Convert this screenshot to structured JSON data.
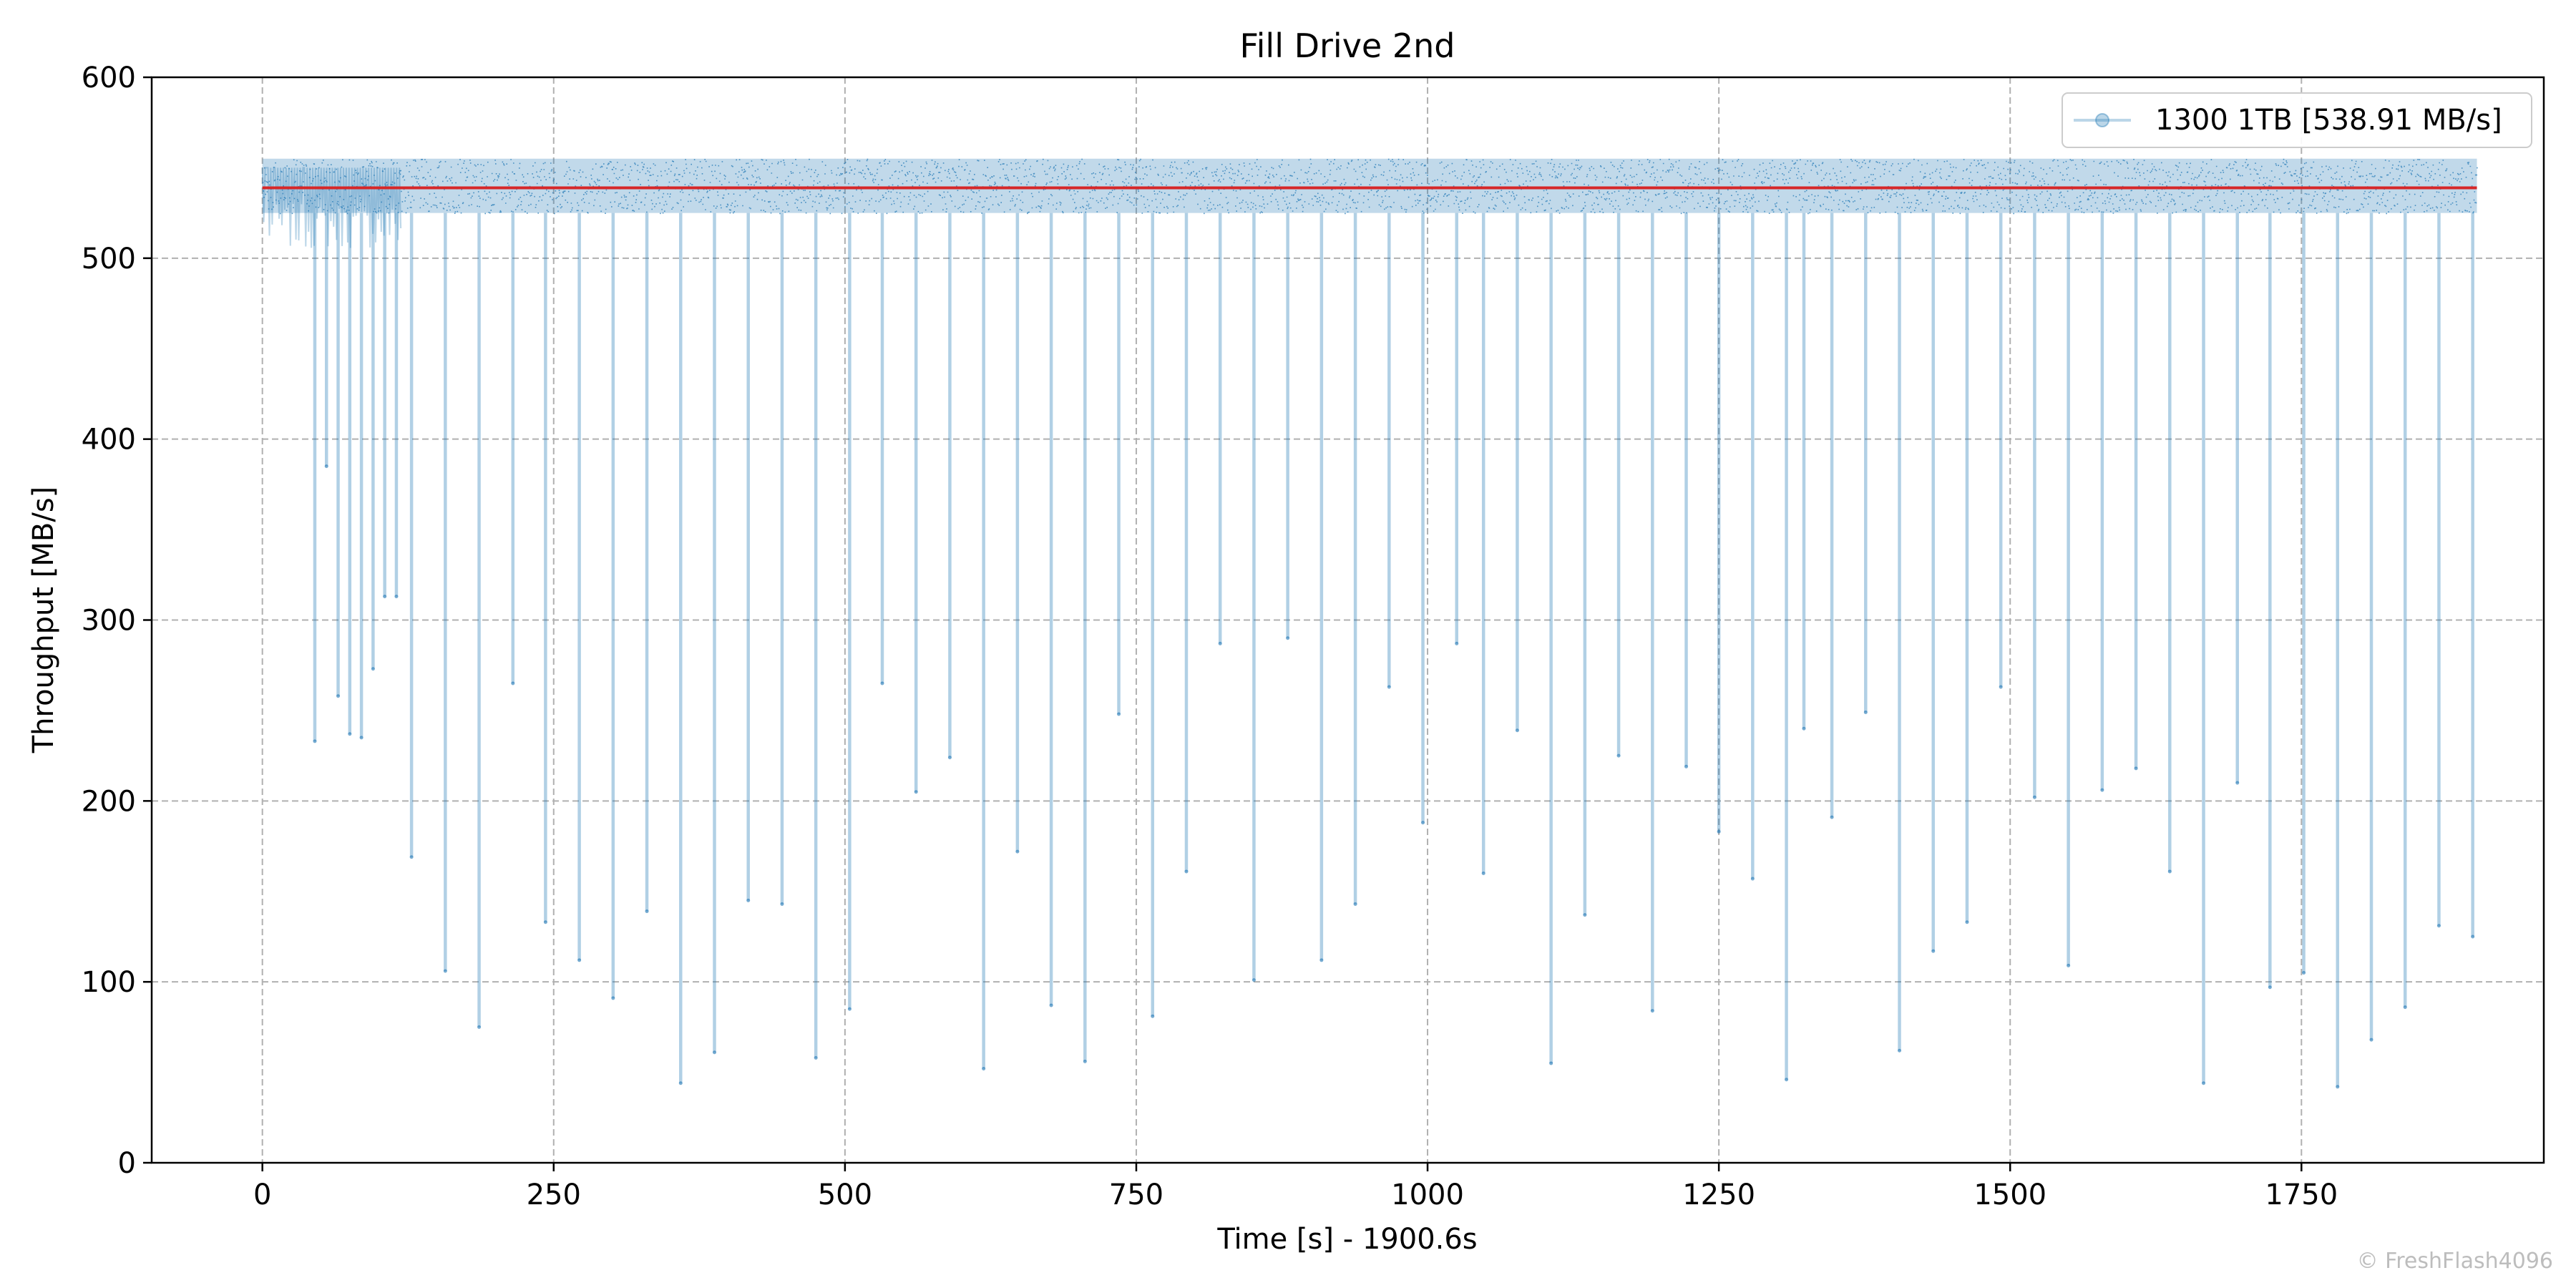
{
  "chart_data": {
    "type": "line",
    "title": "Fill Drive 2nd",
    "xlabel": "Time [s] - 1900.6s",
    "ylabel": "Throughput [MB/s]",
    "xlim": [
      -95,
      1958
    ],
    "ylim": [
      0,
      600
    ],
    "xticks": [
      0,
      250,
      500,
      750,
      1000,
      1250,
      1500,
      1750
    ],
    "yticks": [
      0,
      100,
      200,
      300,
      400,
      500,
      600
    ],
    "grid": true,
    "legend_position": "top-right",
    "watermark": "© FreshFlash4096",
    "average_line": {
      "value": 538.91,
      "color": "#d62728"
    },
    "series": [
      {
        "name": "1300 1TB [538.91 MB/s]",
        "color": "#1f77b4",
        "line_alpha": 0.3,
        "x_start": 0,
        "x_end": 1900.6,
        "baseline_range": [
          525,
          555
        ],
        "early_band": {
          "x": [
            0,
            120
          ],
          "low": 505
        },
        "dips": [
          [
            45,
            233
          ],
          [
            55,
            385
          ],
          [
            65,
            258
          ],
          [
            75,
            237
          ],
          [
            85,
            235
          ],
          [
            95,
            273
          ],
          [
            105,
            313
          ],
          [
            115,
            313
          ],
          [
            128,
            169
          ],
          [
            157,
            106
          ],
          [
            186,
            75
          ],
          [
            215,
            265
          ],
          [
            243,
            133
          ],
          [
            272,
            112
          ],
          [
            301,
            91
          ],
          [
            330,
            139
          ],
          [
            359,
            44
          ],
          [
            388,
            61
          ],
          [
            417,
            145
          ],
          [
            446,
            143
          ],
          [
            475,
            58
          ],
          [
            504,
            85
          ],
          [
            532,
            265
          ],
          [
            561,
            205
          ],
          [
            590,
            224
          ],
          [
            619,
            52
          ],
          [
            648,
            172
          ],
          [
            677,
            87
          ],
          [
            706,
            56
          ],
          [
            735,
            248
          ],
          [
            764,
            81
          ],
          [
            793,
            161
          ],
          [
            822,
            287
          ],
          [
            851,
            101
          ],
          [
            880,
            290
          ],
          [
            909,
            112
          ],
          [
            938,
            143
          ],
          [
            967,
            263
          ],
          [
            996,
            188
          ],
          [
            1025,
            287
          ],
          [
            1048,
            160
          ],
          [
            1077,
            239
          ],
          [
            1106,
            55
          ],
          [
            1135,
            137
          ],
          [
            1164,
            225
          ],
          [
            1193,
            84
          ],
          [
            1222,
            219
          ],
          [
            1250,
            183
          ],
          [
            1279,
            157
          ],
          [
            1308,
            46
          ],
          [
            1323,
            240
          ],
          [
            1347,
            191
          ],
          [
            1376,
            249
          ],
          [
            1405,
            62
          ],
          [
            1434,
            117
          ],
          [
            1463,
            133
          ],
          [
            1492,
            263
          ],
          [
            1521,
            202
          ],
          [
            1550,
            109
          ],
          [
            1579,
            206
          ],
          [
            1608,
            218
          ],
          [
            1637,
            161
          ],
          [
            1666,
            44
          ],
          [
            1695,
            210
          ],
          [
            1723,
            97
          ],
          [
            1752,
            105
          ],
          [
            1781,
            42
          ],
          [
            1810,
            68
          ],
          [
            1839,
            86
          ],
          [
            1868,
            131
          ],
          [
            1897,
            125
          ]
        ]
      }
    ]
  }
}
